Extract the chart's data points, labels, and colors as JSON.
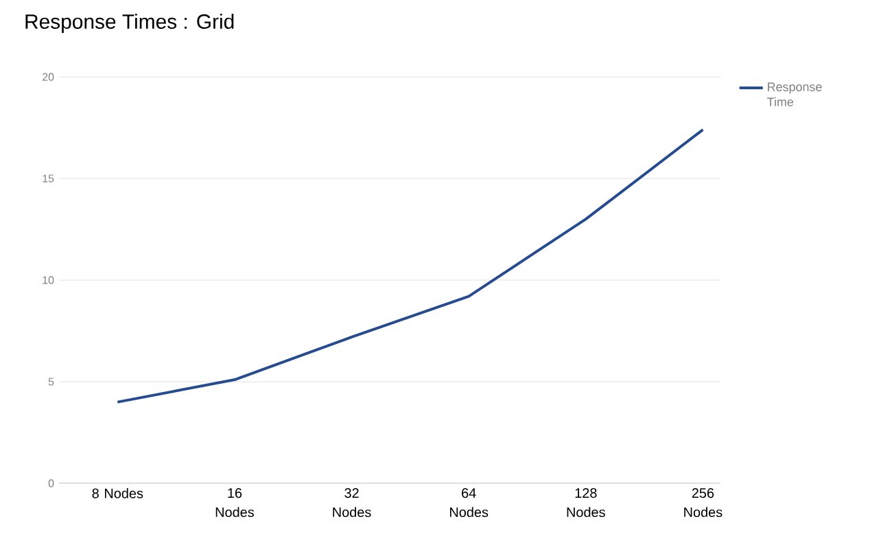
{
  "chart_data": {
    "type": "line",
    "title": "Response Times : Grid",
    "categories": [
      "8 Nodes",
      "16 Nodes",
      "32 Nodes",
      "64 Nodes",
      "128 Nodes",
      "256 Nodes"
    ],
    "series": [
      {
        "name": "Response Time",
        "color": "#264b8f",
        "values": [
          4.0,
          5.1,
          7.2,
          9.2,
          13.0,
          17.4
        ]
      }
    ],
    "ylim": [
      0,
      20
    ],
    "yticks": [
      0,
      5,
      10,
      15,
      20
    ],
    "grid": "y",
    "legend": "top right",
    "marker": "none",
    "line_style": "solid"
  }
}
